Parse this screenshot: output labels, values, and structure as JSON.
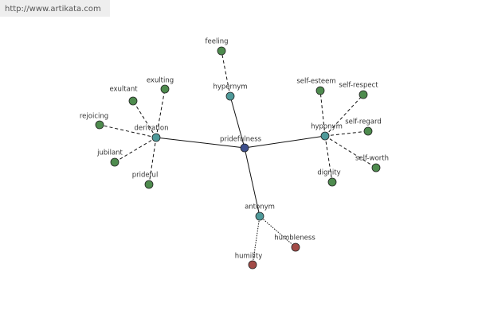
{
  "header": {
    "url": "http://www.artikata.com"
  },
  "nodes": [
    {
      "label": "pridefulness"
    },
    {
      "label": "hypernym"
    },
    {
      "label": "feeling"
    },
    {
      "label": "derivation"
    },
    {
      "label": "exultant"
    },
    {
      "label": "exulting"
    },
    {
      "label": "rejoicing"
    },
    {
      "label": "jubilant"
    },
    {
      "label": "prideful"
    },
    {
      "label": "hyponym"
    },
    {
      "label": "self-esteem"
    },
    {
      "label": "self-respect"
    },
    {
      "label": "self-regard"
    },
    {
      "label": "self-worth"
    },
    {
      "label": "dignity"
    },
    {
      "label": "antonym"
    },
    {
      "label": "humbleness"
    },
    {
      "label": "humility"
    }
  ]
}
